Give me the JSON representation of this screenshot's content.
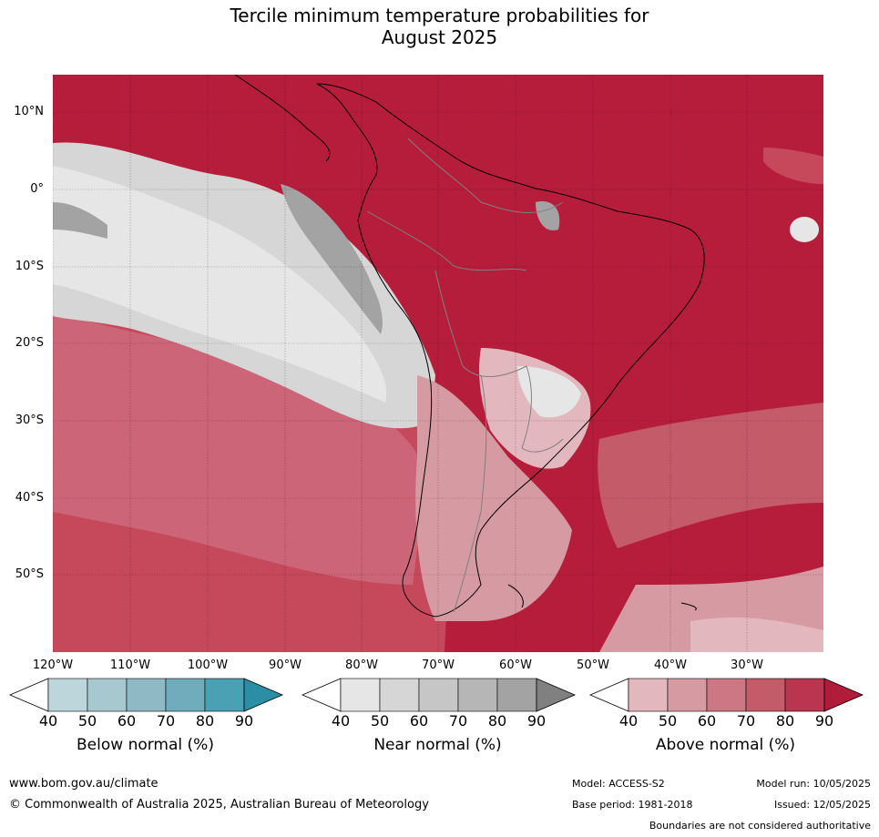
{
  "title_line1": "Tercile minimum temperature probabilities for",
  "title_line2": "August 2025",
  "lat_labels": [
    "10°N",
    "0°",
    "10°S",
    "20°S",
    "30°S",
    "40°S",
    "50°S"
  ],
  "lon_labels": [
    "120°W",
    "110°W",
    "100°W",
    "90°W",
    "80°W",
    "70°W",
    "60°W",
    "50°W",
    "40°W",
    "30°W"
  ],
  "colorbars": [
    {
      "label": "Below normal (%)",
      "ticks": [
        "40",
        "50",
        "60",
        "70",
        "80",
        "90"
      ],
      "colors": [
        "#ffffff",
        "#bcd6dc",
        "#a8c8cf",
        "#8fbac5",
        "#6fadbc",
        "#4aa1b3",
        "#2a8fa5"
      ]
    },
    {
      "label": "Near normal (%)",
      "ticks": [
        "40",
        "50",
        "60",
        "70",
        "80",
        "90"
      ],
      "colors": [
        "#ffffff",
        "#e6e6e6",
        "#d6d6d6",
        "#c6c6c6",
        "#b6b6b6",
        "#a3a3a3",
        "#808080"
      ]
    },
    {
      "label": "Above normal (%)",
      "ticks": [
        "40",
        "50",
        "60",
        "70",
        "80",
        "90"
      ],
      "colors": [
        "#ffffff",
        "#e2b7bd",
        "#d69aa2",
        "#cc7783",
        "#c45b69",
        "#ba3650",
        "#b01c3a"
      ]
    }
  ],
  "footer": {
    "website": "www.bom.gov.au/climate",
    "copyright": "© Commonwealth of Australia 2025, Australian Bureau of Meteorology",
    "model": "Model: ACCESS-S2",
    "model_run": "Model run: 10/05/2025",
    "base_period": "Base period: 1981-2018",
    "issued": "Issued: 12/05/2025",
    "disclaimer": "Boundaries are not considered authoritative"
  }
}
